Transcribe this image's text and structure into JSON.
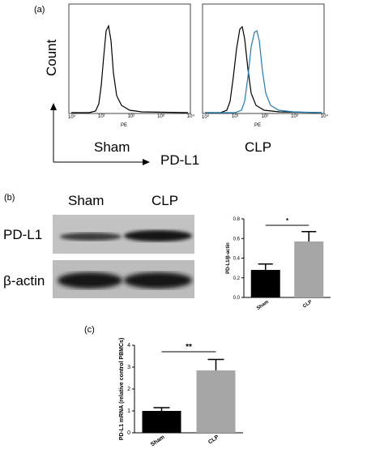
{
  "panels": {
    "a": {
      "label": "(a)",
      "count_label": "Count",
      "sham_label": "Sham",
      "pdl1_label": "PD-L1",
      "clp_label": "CLP",
      "pe_label": "PE",
      "ticks": [
        "10⁰",
        "10¹",
        "10²",
        "10³",
        "10⁴"
      ]
    },
    "b": {
      "label": "(b)",
      "col_sham": "Sham",
      "col_clp": "CLP",
      "row_pdl1": "PD-L1",
      "row_bactin": "β-actin"
    },
    "c": {
      "label": "(c)"
    }
  },
  "chart_data": [
    {
      "type": "bar",
      "panel": "b",
      "categories": [
        "Sham",
        "CLP"
      ],
      "values": [
        0.28,
        0.57
      ],
      "errors": [
        0.06,
        0.1
      ],
      "ylabel": "PD-L1/β-actin",
      "ylim": [
        0,
        0.8
      ],
      "yticks": [
        "0.0",
        "0.2",
        "0.4",
        "0.6",
        "0.8"
      ],
      "significance": "*",
      "colors": [
        "#000000",
        "#a6a6a6"
      ]
    },
    {
      "type": "bar",
      "panel": "c",
      "categories": [
        "Sham",
        "CLP"
      ],
      "values": [
        1.0,
        2.85
      ],
      "errors": [
        0.15,
        0.5
      ],
      "ylabel": "PD-L1 mRNA (relative control PBMCs)",
      "ylim": [
        0,
        4
      ],
      "yticks": [
        "0",
        "1",
        "2",
        "3",
        "4"
      ],
      "significance": "**",
      "colors": [
        "#000000",
        "#a6a6a6"
      ]
    }
  ]
}
